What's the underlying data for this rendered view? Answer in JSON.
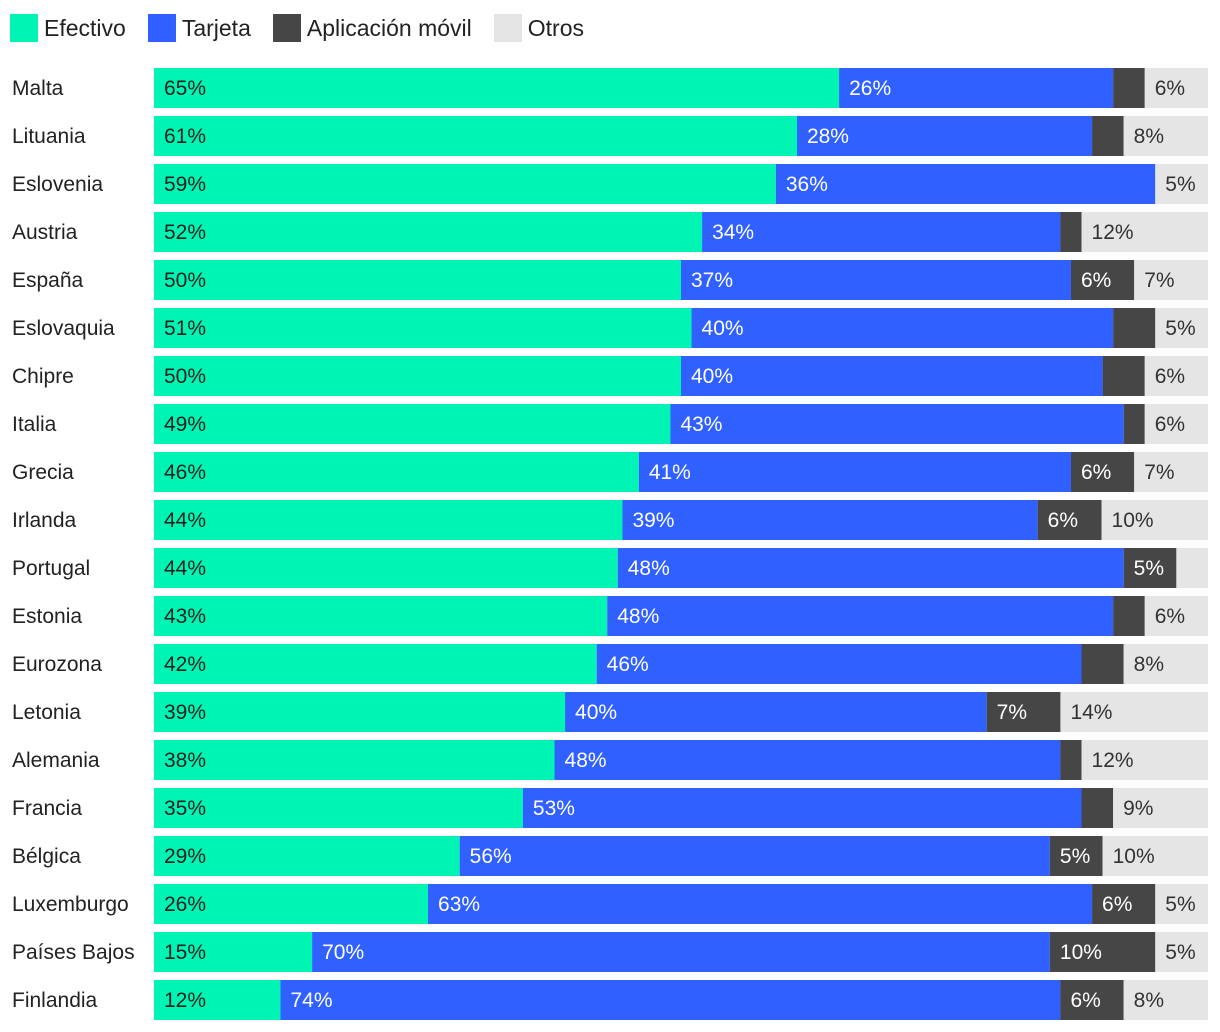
{
  "chart_data": {
    "type": "bar",
    "orientation": "horizontal",
    "stacked": true,
    "unit": "%",
    "legend_position": "top-left",
    "categories": [
      "Malta",
      "Lituania",
      "Eslovenia",
      "Austria",
      "España",
      "Eslovaquia",
      "Chipre",
      "Italia",
      "Grecia",
      "Irlanda",
      "Portugal",
      "Estonia",
      "Eurozona",
      "Letonia",
      "Alemania",
      "Francia",
      "Bélgica",
      "Luxemburgo",
      "Países Bajos",
      "Finlandia"
    ],
    "series": [
      {
        "name": "Efectivo",
        "color": "#00F5B4",
        "values": [
          65,
          61,
          59,
          52,
          50,
          51,
          50,
          49,
          46,
          44,
          44,
          43,
          42,
          39,
          38,
          35,
          29,
          26,
          15,
          12
        ],
        "labels": [
          "65%",
          "61%",
          "59%",
          "52%",
          "50%",
          "51%",
          "50%",
          "49%",
          "46%",
          "44%",
          "44%",
          "43%",
          "42%",
          "39%",
          "38%",
          "35%",
          "29%",
          "26%",
          "15%",
          "12%"
        ]
      },
      {
        "name": "Tarjeta",
        "color": "#3060FF",
        "values": [
          26,
          28,
          36,
          34,
          37,
          40,
          40,
          43,
          41,
          39,
          48,
          48,
          46,
          40,
          48,
          53,
          56,
          63,
          70,
          74
        ],
        "labels": [
          "26%",
          "28%",
          "36%",
          "34%",
          "37%",
          "40%",
          "40%",
          "43%",
          "41%",
          "39%",
          "48%",
          "48%",
          "46%",
          "40%",
          "48%",
          "53%",
          "56%",
          "63%",
          "70%",
          "74%"
        ]
      },
      {
        "name": "Aplicación móvil",
        "color": "#464646",
        "values": [
          3,
          3,
          0,
          2,
          6,
          4,
          4,
          2,
          6,
          6,
          5,
          3,
          4,
          7,
          2,
          3,
          5,
          6,
          10,
          6
        ],
        "labels": [
          "",
          "",
          "",
          "",
          "6%",
          "",
          "",
          "",
          "6%",
          "6%",
          "5%",
          "",
          "",
          "7%",
          "",
          "",
          "5%",
          "6%",
          "10%",
          "6%"
        ]
      },
      {
        "name": "Otros",
        "color": "#E5E5E5",
        "values": [
          6,
          8,
          5,
          12,
          7,
          5,
          6,
          6,
          7,
          10,
          3,
          6,
          8,
          14,
          12,
          9,
          10,
          5,
          5,
          8
        ],
        "labels": [
          "6%",
          "8%",
          "5%",
          "12%",
          "7%",
          "5%",
          "6%",
          "6%",
          "7%",
          "10%",
          "",
          "6%",
          "8%",
          "14%",
          "12%",
          "9%",
          "10%",
          "5%",
          "5%",
          "8%"
        ]
      }
    ]
  }
}
